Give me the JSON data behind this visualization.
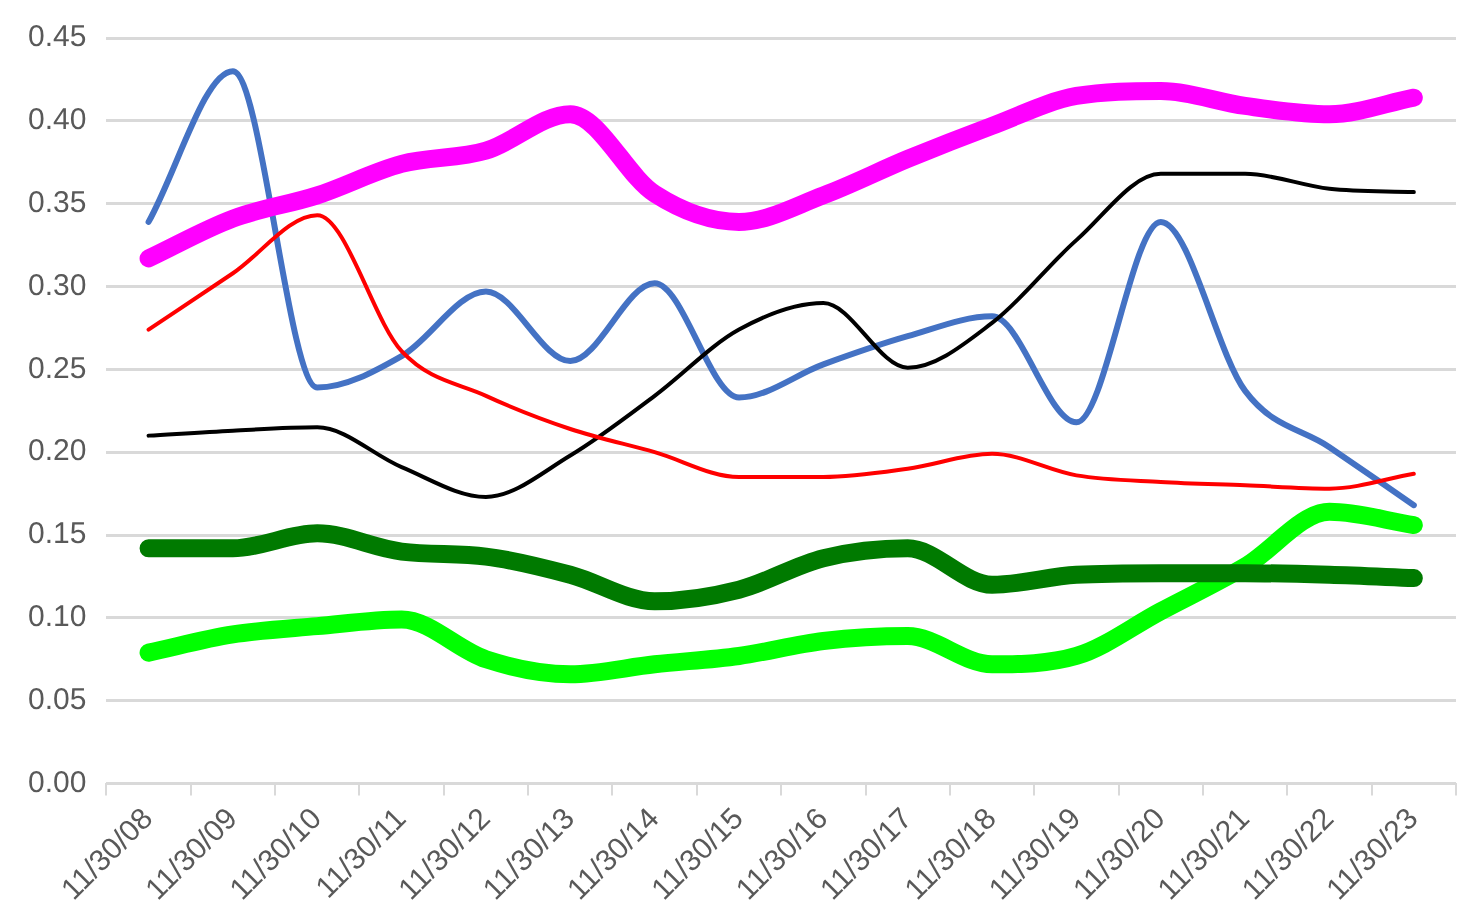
{
  "chart_data": {
    "type": "line",
    "categories": [
      "11/30/08",
      "11/30/09",
      "11/30/10",
      "11/30/11",
      "11/30/12",
      "11/30/13",
      "11/30/14",
      "11/30/15",
      "11/30/16",
      "11/30/17",
      "11/30/18",
      "11/30/19",
      "11/30/20",
      "11/30/21",
      "11/30/22",
      "11/30/23"
    ],
    "series": [
      {
        "color": "#ff00ff",
        "values": [
          0.317,
          0.341,
          0.355,
          0.374,
          0.382,
          0.404,
          0.356,
          0.339,
          0.355,
          0.377,
          0.397,
          0.415,
          0.418,
          0.409,
          0.404,
          0.414
        ]
      },
      {
        "color": "#007a00",
        "values": [
          0.142,
          0.142,
          0.151,
          0.14,
          0.137,
          0.126,
          0.11,
          0.117,
          0.136,
          0.142,
          0.12,
          0.126,
          0.127,
          0.127,
          0.126,
          0.124
        ]
      },
      {
        "color": "#00ff00",
        "values": [
          0.079,
          0.09,
          0.095,
          0.099,
          0.075,
          0.066,
          0.072,
          0.077,
          0.086,
          0.089,
          0.072,
          0.077,
          0.104,
          0.131,
          0.164,
          0.156
        ]
      },
      {
        "color": "#ff0000",
        "values": [
          0.274,
          0.308,
          0.343,
          0.261,
          0.234,
          0.214,
          0.2,
          0.185,
          0.185,
          0.19,
          0.199,
          0.186,
          0.182,
          0.18,
          0.178,
          0.187
        ]
      },
      {
        "color": "#000000",
        "values": [
          0.21,
          0.213,
          0.215,
          0.191,
          0.173,
          0.198,
          0.234,
          0.274,
          0.29,
          0.251,
          0.278,
          0.328,
          0.368,
          0.368,
          0.359,
          0.357
        ]
      },
      {
        "color": "#4472c4",
        "values": [
          0.339,
          0.43,
          0.239,
          0.258,
          0.297,
          0.255,
          0.302,
          0.233,
          0.253,
          0.27,
          0.282,
          0.218,
          0.339,
          0.237,
          0.203,
          0.168
        ]
      }
    ],
    "ylim": [
      0,
      0.45
    ],
    "yticks": [
      {
        "value": 0,
        "label": "0.00"
      },
      {
        "value": 0.05,
        "label": "0.05"
      },
      {
        "value": 0.1,
        "label": "0.10"
      },
      {
        "value": 0.15,
        "label": "0.15"
      },
      {
        "value": 0.2,
        "label": "0.20"
      },
      {
        "value": 0.25,
        "label": "0.25"
      },
      {
        "value": 0.3,
        "label": "0.30"
      },
      {
        "value": 0.35,
        "label": "0.35"
      },
      {
        "value": 0.4,
        "label": "0.40"
      },
      {
        "value": 0.45,
        "label": "0.45"
      }
    ],
    "grid": "y",
    "legend": false,
    "marker": "none",
    "line_style": "solid"
  }
}
